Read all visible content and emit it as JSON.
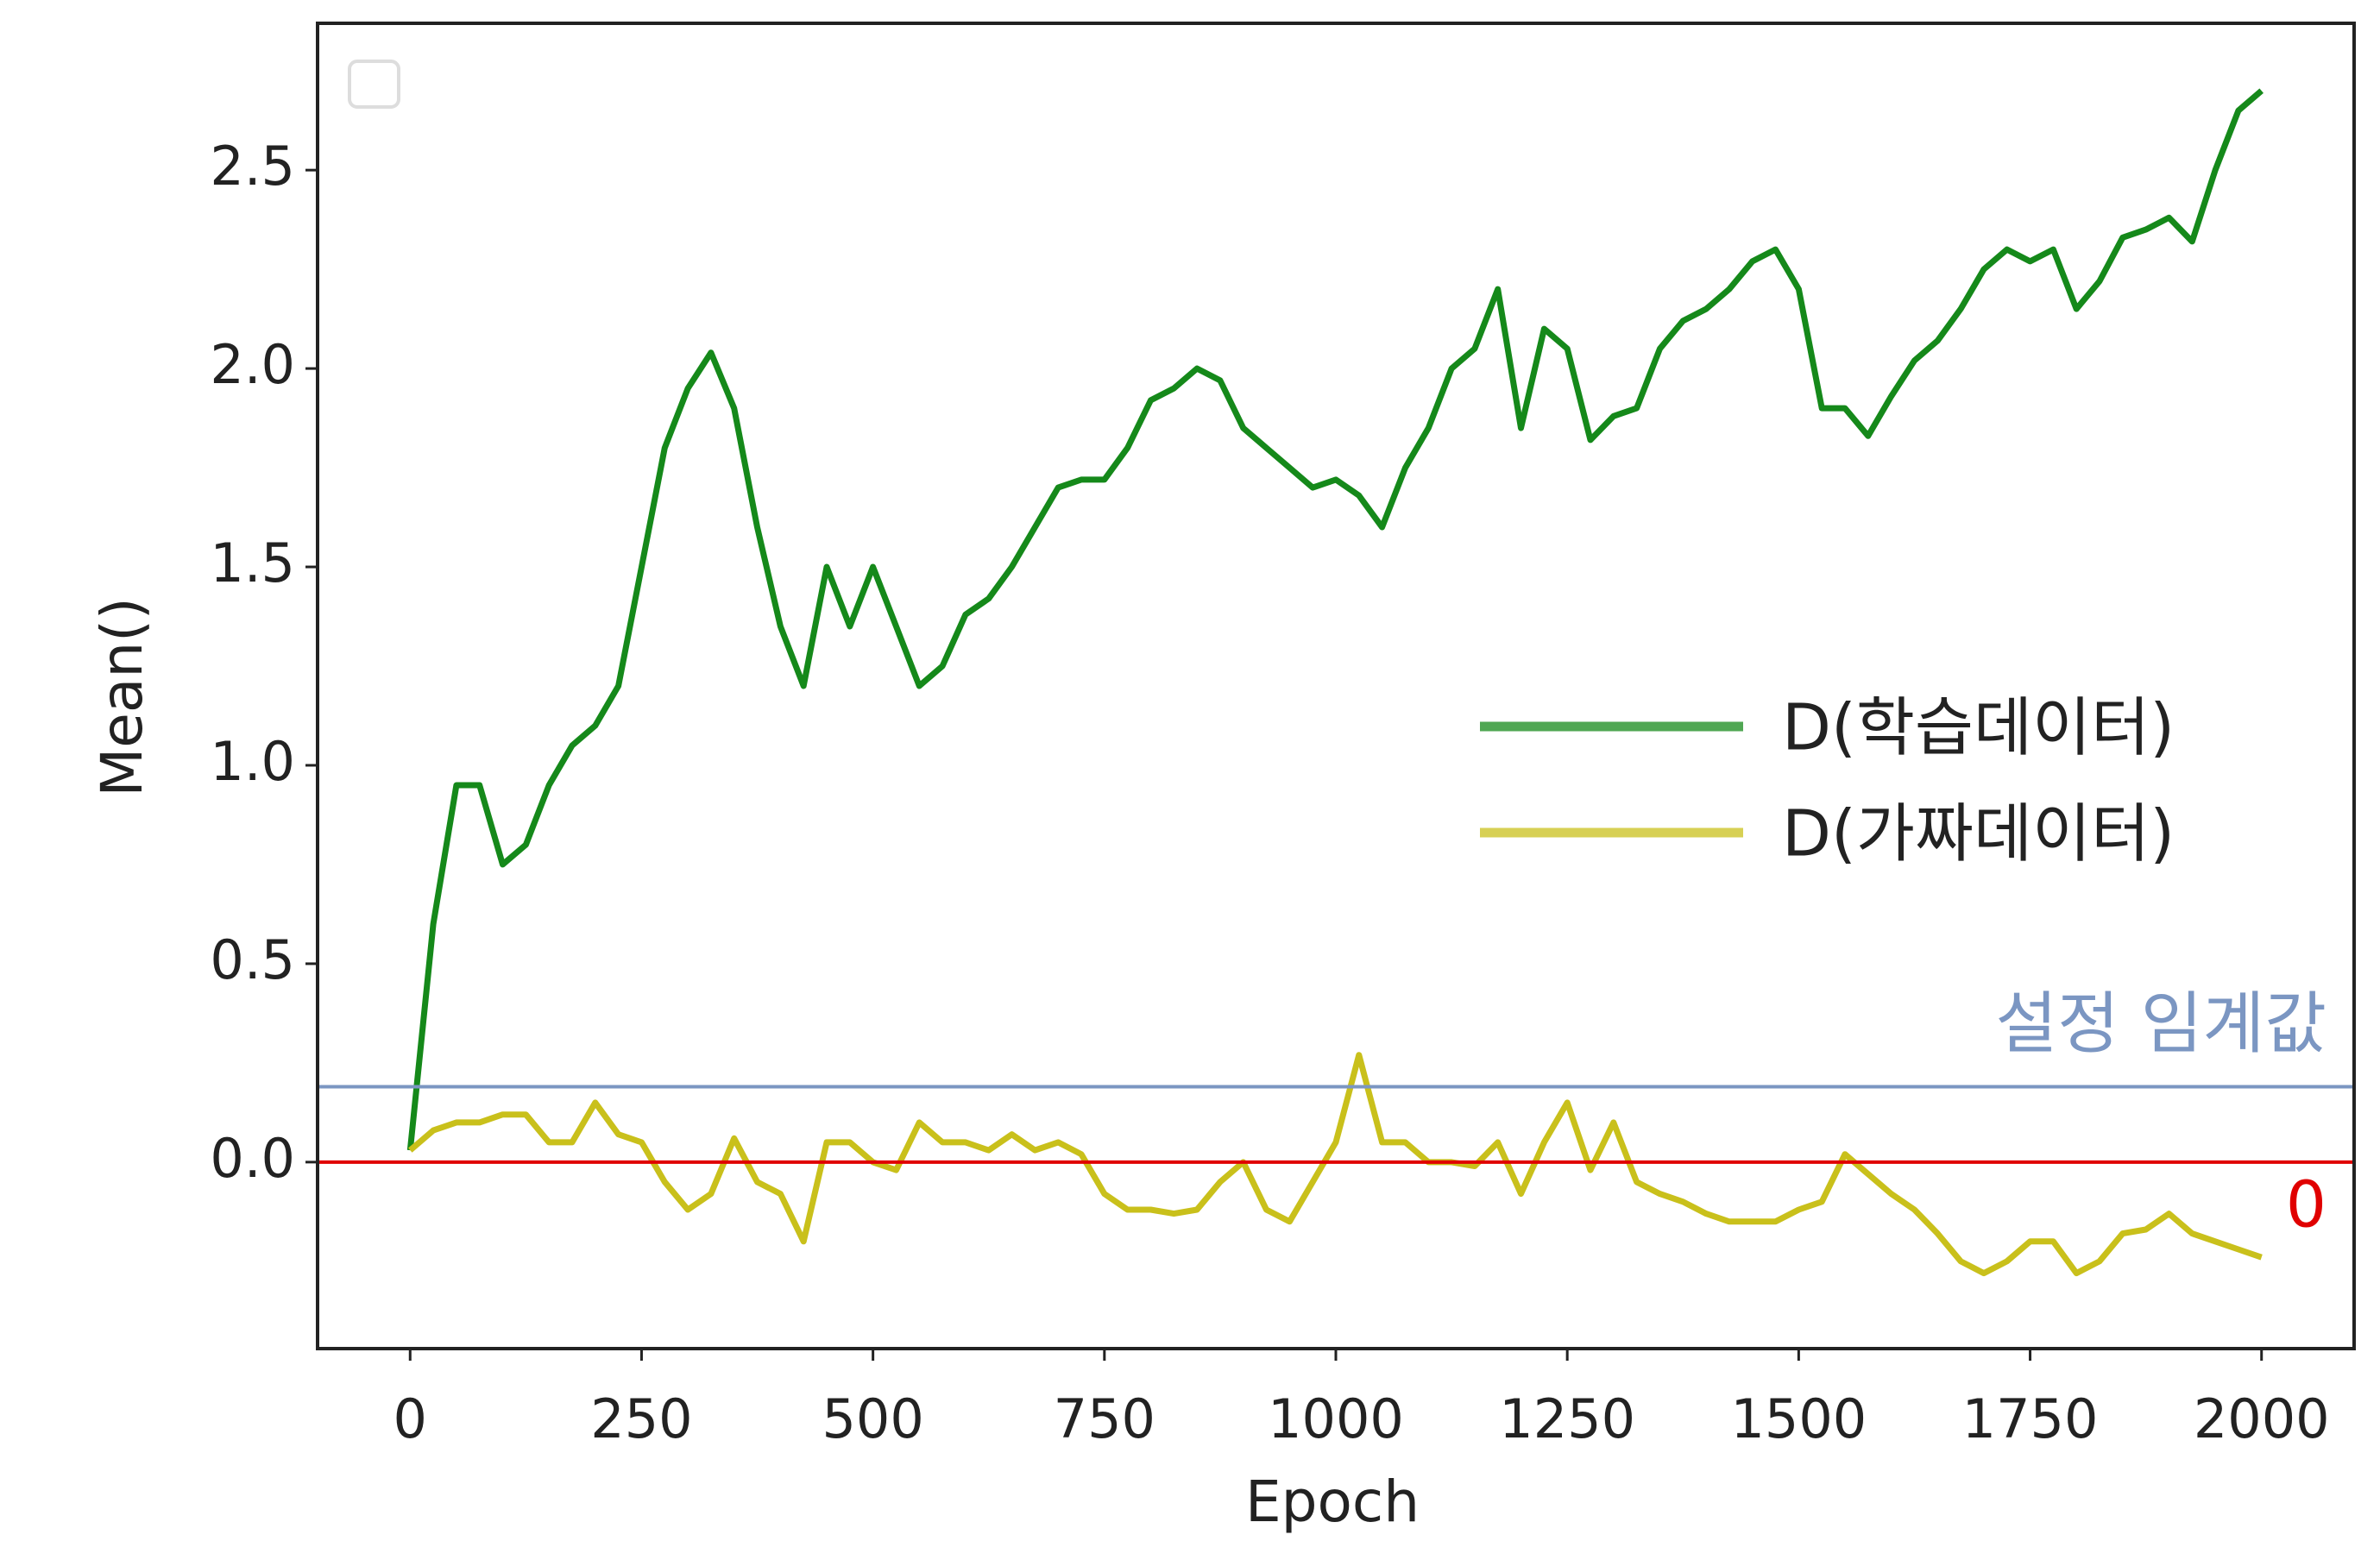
{
  "chart_data": {
    "type": "line",
    "xlabel": "Epoch",
    "ylabel": "Mean()",
    "x": [
      0,
      25,
      50,
      75,
      100,
      125,
      150,
      175,
      200,
      225,
      250,
      275,
      300,
      325,
      350,
      375,
      400,
      425,
      450,
      475,
      500,
      525,
      550,
      575,
      600,
      625,
      650,
      675,
      700,
      725,
      750,
      775,
      800,
      825,
      850,
      875,
      900,
      925,
      950,
      975,
      1000,
      1025,
      1050,
      1075,
      1100,
      1125,
      1150,
      1175,
      1200,
      1225,
      1250,
      1275,
      1300,
      1325,
      1350,
      1375,
      1400,
      1425,
      1450,
      1475,
      1500,
      1525,
      1550,
      1575,
      1600,
      1625,
      1650,
      1675,
      1700,
      1725,
      1750,
      1775,
      1800,
      1825,
      1850,
      1875,
      1900,
      1925,
      1950,
      1975,
      2000
    ],
    "series": [
      {
        "name": "D(학습데이터)",
        "color": "#15891a",
        "values": [
          0.03,
          0.6,
          0.95,
          0.95,
          0.75,
          0.8,
          0.95,
          1.05,
          1.1,
          1.2,
          1.5,
          1.8,
          1.95,
          2.04,
          1.9,
          1.6,
          1.35,
          1.2,
          1.5,
          1.35,
          1.5,
          1.35,
          1.2,
          1.25,
          1.38,
          1.42,
          1.5,
          1.6,
          1.7,
          1.72,
          1.72,
          1.8,
          1.92,
          1.95,
          2.0,
          1.97,
          1.85,
          1.8,
          1.75,
          1.7,
          1.72,
          1.68,
          1.6,
          1.75,
          1.85,
          2.0,
          2.05,
          2.2,
          1.85,
          2.1,
          2.05,
          1.82,
          1.88,
          1.9,
          2.05,
          2.12,
          2.15,
          2.2,
          2.27,
          2.3,
          2.2,
          1.9,
          1.9,
          1.83,
          1.93,
          2.02,
          2.07,
          2.15,
          2.25,
          2.3,
          2.27,
          2.3,
          2.15,
          2.22,
          2.33,
          2.35,
          2.38,
          2.32,
          2.5,
          2.65,
          2.7
        ]
      },
      {
        "name": "D(가짜데이터)",
        "color": "#c9c01b",
        "values": [
          0.03,
          0.08,
          0.1,
          0.1,
          0.12,
          0.12,
          0.05,
          0.05,
          0.15,
          0.07,
          0.05,
          -0.05,
          -0.12,
          -0.08,
          0.06,
          -0.05,
          -0.08,
          -0.2,
          0.05,
          0.05,
          0.0,
          -0.02,
          0.1,
          0.05,
          0.05,
          0.03,
          0.07,
          0.03,
          0.05,
          0.02,
          -0.08,
          -0.12,
          -0.12,
          -0.13,
          -0.12,
          -0.05,
          0.0,
          -0.12,
          -0.15,
          -0.05,
          0.05,
          0.27,
          0.05,
          0.05,
          0.0,
          0.0,
          -0.01,
          0.05,
          -0.08,
          0.05,
          0.15,
          -0.02,
          0.1,
          -0.05,
          -0.08,
          -0.1,
          -0.13,
          -0.15,
          -0.15,
          -0.15,
          -0.12,
          -0.1,
          0.02,
          -0.03,
          -0.08,
          -0.12,
          -0.18,
          -0.25,
          -0.28,
          -0.25,
          -0.2,
          -0.2,
          -0.28,
          -0.25,
          -0.18,
          -0.17,
          -0.13,
          -0.18,
          -0.2,
          -0.22,
          -0.24
        ]
      }
    ],
    "hlines": [
      {
        "value": 0.19,
        "color": "#7b96c2",
        "label": "설정 임계값"
      },
      {
        "value": 0,
        "color": "#e00000",
        "label": "0"
      }
    ],
    "xlim": [
      -100,
      2100
    ],
    "ylim": [
      -0.47,
      2.87
    ],
    "xticks": [
      0,
      250,
      500,
      750,
      1000,
      1250,
      1500,
      1750,
      2000
    ],
    "yticks": [
      {
        "value": 0,
        "label": "0.0"
      },
      0.5,
      {
        "value": 1,
        "label": "1.0"
      },
      1.5,
      {
        "value": 2,
        "label": "2.0"
      },
      2.5
    ],
    "legend": "center right"
  }
}
